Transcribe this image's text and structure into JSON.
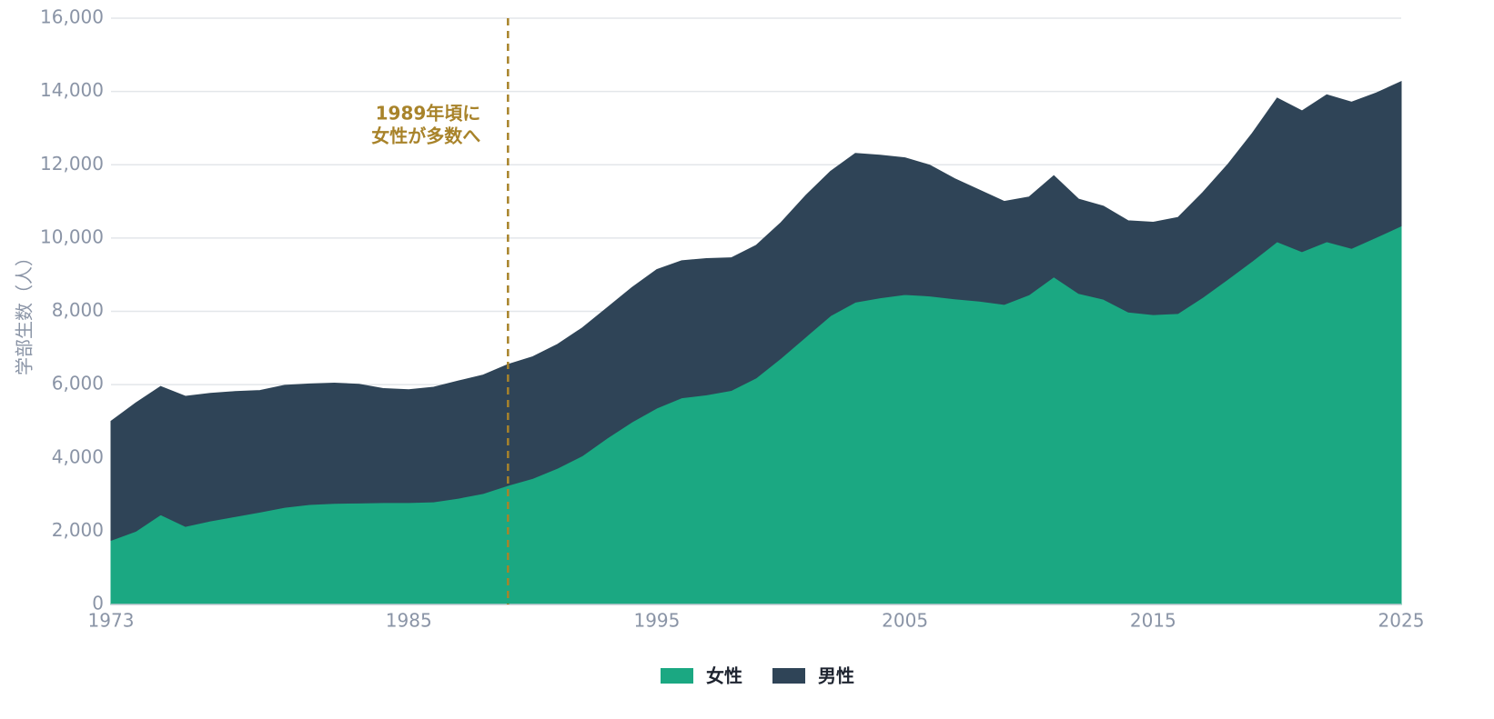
{
  "chart_data": {
    "type": "stacked_area",
    "y_label": "学部生数（人）",
    "x": [
      1973,
      1974,
      1975,
      1976,
      1977,
      1978,
      1979,
      1980,
      1981,
      1982,
      1983,
      1984,
      1985,
      1986,
      1987,
      1988,
      1989,
      1990,
      1991,
      1992,
      1993,
      1994,
      1995,
      1996,
      1997,
      1998,
      1999,
      2000,
      2001,
      2002,
      2003,
      2004,
      2005,
      2006,
      2007,
      2008,
      2009,
      2010,
      2011,
      2012,
      2013,
      2014,
      2015,
      2016,
      2017,
      2018,
      2019,
      2020,
      2021,
      2022,
      2023,
      2024,
      2025
    ],
    "series": [
      {
        "name": "女性",
        "color": "#1ba882",
        "values": [
          1750,
          2000,
          2450,
          2130,
          2280,
          2400,
          2520,
          2650,
          2730,
          2760,
          2770,
          2780,
          2780,
          2800,
          2900,
          3030,
          3250,
          3440,
          3720,
          4060,
          4540,
          4980,
          5360,
          5640,
          5720,
          5840,
          6180,
          6720,
          7300,
          7880,
          8250,
          8370,
          8460,
          8420,
          8340,
          8280,
          8190,
          8450,
          8940,
          8490,
          8330,
          7980,
          7910,
          7940,
          8380,
          8870,
          9370,
          9900,
          9630,
          9900,
          9720,
          10020,
          10330
        ]
      },
      {
        "name": "男性",
        "color": "#2f4457",
        "values": [
          3250,
          3500,
          3500,
          3550,
          3480,
          3410,
          3320,
          3330,
          3290,
          3280,
          3240,
          3110,
          3080,
          3130,
          3200,
          3230,
          3300,
          3320,
          3380,
          3490,
          3560,
          3670,
          3780,
          3740,
          3720,
          3620,
          3620,
          3700,
          3860,
          3940,
          4060,
          3890,
          3730,
          3570,
          3280,
          3030,
          2810,
          2670,
          2760,
          2570,
          2540,
          2490,
          2520,
          2620,
          2860,
          3130,
          3490,
          3920,
          3840,
          4010,
          3990,
          3940,
          3940
        ]
      }
    ],
    "xlim": [
      1973,
      2025
    ],
    "xticks": [
      1973,
      1985,
      1995,
      2005,
      2015,
      2025
    ],
    "ylim": [
      0,
      16000
    ],
    "yticks": [
      0,
      {
        "value": 2000,
        "label": "2,000"
      },
      {
        "value": 4000,
        "label": "4,000"
      },
      {
        "value": 6000,
        "label": "6,000"
      },
      {
        "value": 8000,
        "label": "8,000"
      },
      {
        "value": 10000,
        "label": "10,000"
      },
      {
        "value": 12000,
        "label": "12,000"
      },
      {
        "value": 14000,
        "label": "14,000"
      },
      {
        "value": 16000,
        "label": "16,000"
      }
    ],
    "grid": true,
    "legend": "bottom",
    "annotation": {
      "text": [
        "1989年頃に",
        "女性が多数へ"
      ],
      "x": 1989,
      "color": "#a8832a"
    }
  }
}
